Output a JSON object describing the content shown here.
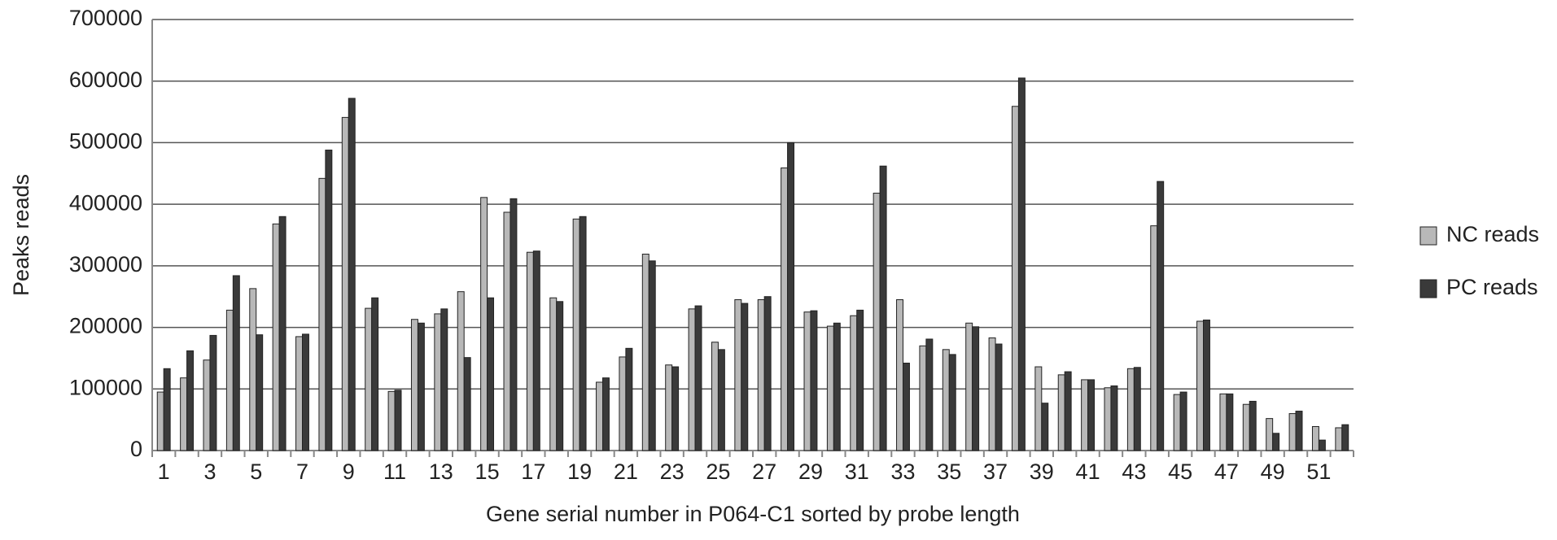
{
  "chart_data": {
    "type": "bar",
    "x_label": "Gene serial number in P064-C1 sorted by probe length",
    "y_label": "Peaks reads",
    "categories": [
      "1",
      null,
      "3",
      null,
      "5",
      null,
      "7",
      null,
      "9",
      null,
      "11",
      null,
      "13",
      null,
      "15",
      null,
      "17",
      null,
      "19",
      null,
      "21",
      null,
      "23",
      null,
      "25",
      null,
      "27",
      null,
      "29",
      null,
      "31",
      null,
      "33",
      null,
      "35",
      null,
      "37",
      null,
      "39",
      null,
      "41",
      null,
      "43",
      null,
      "45",
      null,
      "47",
      null,
      "49",
      null,
      "51",
      null
    ],
    "series": [
      {
        "name": "NC reads",
        "color": "#b8b8b8",
        "values": [
          95000,
          118000,
          147000,
          228000,
          263000,
          368000,
          185000,
          442000,
          541000,
          231000,
          96000,
          213000,
          222000,
          258000,
          411000,
          387000,
          322000,
          248000,
          376000,
          111000,
          152000,
          319000,
          139000,
          230000,
          176000,
          245000,
          245000,
          459000,
          225000,
          202000,
          219000,
          418000,
          245000,
          170000,
          164000,
          207000,
          183000,
          559000,
          136000,
          123000,
          115000,
          102000,
          133000,
          365000,
          91000,
          210000,
          92000,
          75000,
          52000,
          60000,
          39000,
          37000
        ]
      },
      {
        "name": "PC reads",
        "color": "#3a3a3a",
        "values": [
          133000,
          162000,
          187000,
          284000,
          188000,
          380000,
          189000,
          488000,
          572000,
          248000,
          98000,
          207000,
          230000,
          151000,
          248000,
          409000,
          324000,
          242000,
          380000,
          118000,
          166000,
          308000,
          136000,
          235000,
          164000,
          239000,
          250000,
          500000,
          227000,
          207000,
          228000,
          462000,
          142000,
          181000,
          156000,
          201000,
          173000,
          605000,
          77000,
          128000,
          115000,
          105000,
          135000,
          437000,
          95000,
          212000,
          92000,
          80000,
          28000,
          64000,
          17000,
          42000
        ]
      }
    ],
    "ylim": [
      0,
      700000
    ],
    "yticks": [
      0,
      100000,
      200000,
      300000,
      400000,
      500000,
      600000,
      700000
    ],
    "grid": true,
    "legend": "right"
  }
}
